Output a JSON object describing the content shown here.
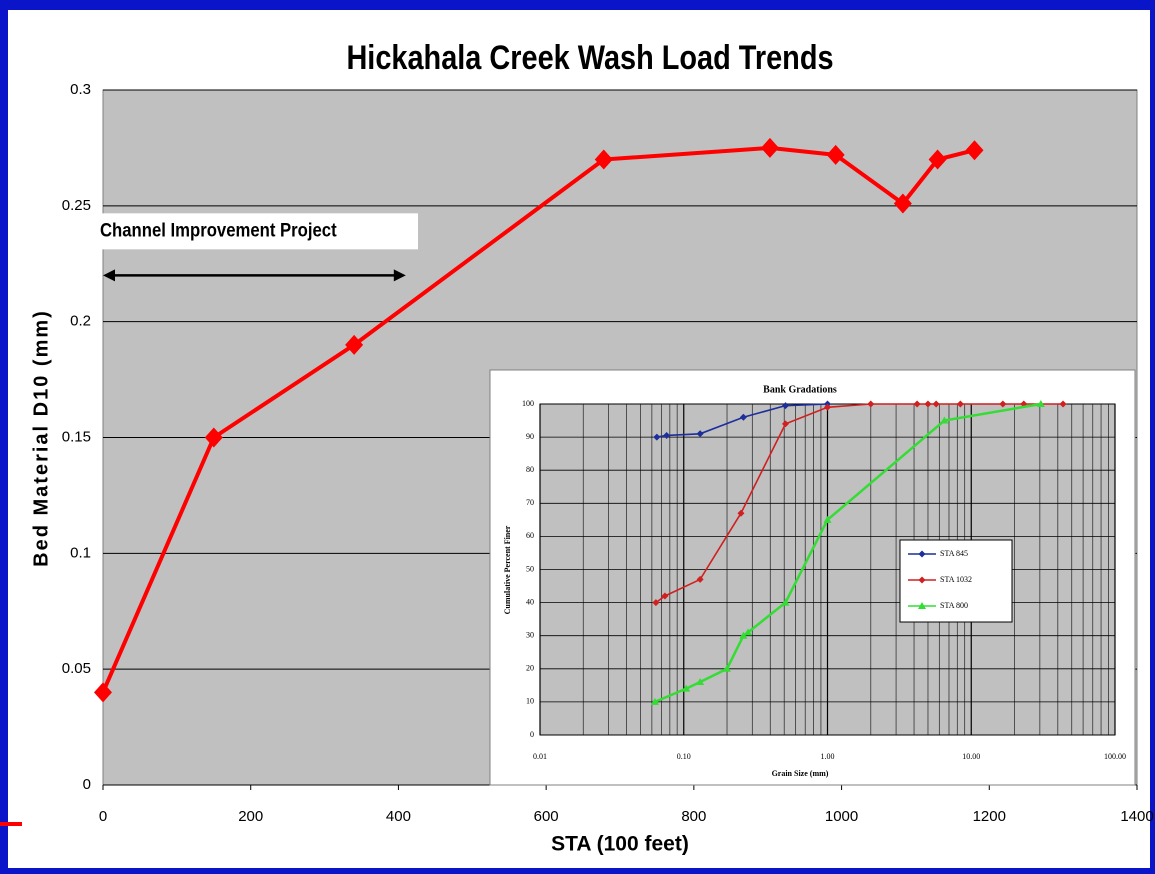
{
  "chart_data": [
    {
      "type": "line",
      "title": "Hickahala Creek Wash Load Trends",
      "xlabel": "STA (100 feet)",
      "ylabel": "Bed Material D10  (mm)",
      "x": [
        0,
        150,
        340,
        678,
        903,
        992,
        1083,
        1130,
        1180
      ],
      "values": [
        0.04,
        0.15,
        0.19,
        0.27,
        0.275,
        0.272,
        0.251,
        0.27,
        0.274
      ],
      "color": "#ff0000",
      "xlim": [
        0,
        1400
      ],
      "xticks": [
        0,
        200,
        400,
        600,
        800,
        1000,
        1200,
        1400
      ],
      "ylim": [
        0,
        0.3
      ],
      "yticks": [
        0,
        0.05,
        0.1,
        0.15,
        0.2,
        0.25,
        0.3
      ],
      "grid": true,
      "annotation": {
        "text": "Channel Improvement Project",
        "x_start": 0,
        "x_end": 410,
        "y": 0.22
      }
    },
    {
      "type": "line",
      "title": "Bank Gradations",
      "xlabel": "Grain Size (mm)",
      "ylabel": "Cumulative Percent Finer",
      "xscale": "log",
      "xlim": [
        0.01,
        100
      ],
      "xticks": [
        {
          "value": 0.01,
          "label": "0.01"
        },
        {
          "value": 0.1,
          "label": "0.10"
        },
        {
          "value": 1,
          "label": "1.00"
        },
        {
          "value": 10,
          "label": "10.00"
        },
        {
          "value": 100,
          "label": "100.00"
        }
      ],
      "ylim": [
        0,
        100
      ],
      "yticks": [
        0,
        10,
        20,
        30,
        40,
        50,
        60,
        70,
        80,
        90,
        100
      ],
      "grid": true,
      "legend": "right",
      "series": [
        {
          "name": "STA 845",
          "color": "#1c2f9c",
          "x": [
            0.065,
            0.076,
            0.13,
            0.26,
            0.51,
            1.0
          ],
          "values": [
            90,
            90.5,
            91,
            96,
            99.5,
            100
          ]
        },
        {
          "name": "STA 1032",
          "color": "#d02020",
          "x": [
            0.064,
            0.074,
            0.13,
            0.25,
            0.51,
            1.0,
            2.0,
            4.2,
            5.0,
            5.7,
            8.4,
            16.6,
            23.2,
            43.5
          ],
          "values": [
            40,
            42,
            47,
            67,
            94,
            99,
            100,
            100,
            100,
            100,
            100,
            100,
            100,
            100
          ]
        },
        {
          "name": "STA 800",
          "color": "#33dd33",
          "x": [
            0.063,
            0.104,
            0.13,
            0.2,
            0.26,
            0.28,
            0.51,
            1.0,
            6.5,
            30.5
          ],
          "values": [
            10,
            14,
            16,
            20,
            30,
            31,
            40,
            65,
            95,
            100
          ]
        }
      ]
    }
  ]
}
